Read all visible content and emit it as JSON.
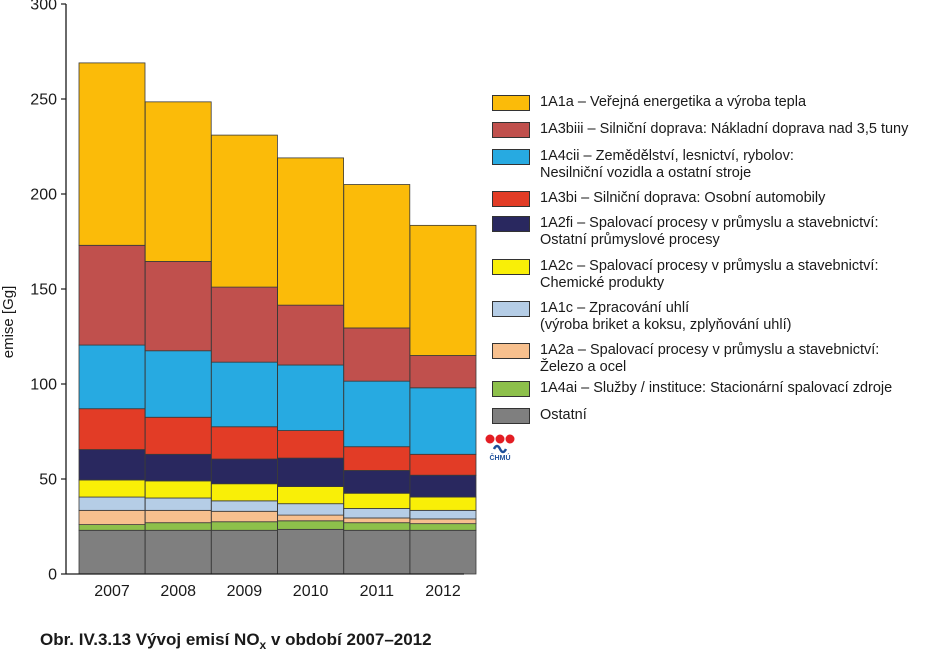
{
  "chart_data": {
    "type": "bar",
    "stacked": true,
    "categories": [
      "2007",
      "2008",
      "2009",
      "2010",
      "2011",
      "2012"
    ],
    "ylabel": "emise [Gg]",
    "xlabel": "",
    "ylim": [
      0,
      300
    ],
    "yticks": [
      "0",
      "50",
      "100",
      "150",
      "200",
      "250",
      "300"
    ],
    "series": [
      {
        "name": "Ostatní",
        "color": "#7f7f7f",
        "values": [
          23,
          23,
          23,
          23.5,
          23,
          23
        ]
      },
      {
        "name": "1A4ai – Služby / instituce: Stacionární spalovací zdroje",
        "color": "#8dc04b",
        "values": [
          3,
          4,
          4.5,
          4.5,
          4,
          3.5
        ]
      },
      {
        "name": "1A2a – Spalovací procesy v průmyslu a stavebnictví:\nŽelezo a ocel",
        "color": "#f7c08e",
        "values": [
          7.5,
          6.5,
          5.5,
          3,
          2.5,
          2.5
        ]
      },
      {
        "name": "1A1c – Zpracování uhlí\n(výroba briket a koksu, zplyňování uhlí)",
        "color": "#b5cde6",
        "values": [
          7,
          6.5,
          5.5,
          6,
          5,
          4.5
        ]
      },
      {
        "name": "1A2c – Spalovací procesy v průmyslu a stavebnictví:\nChemické produkty",
        "color": "#f9ef07",
        "values": [
          9,
          9,
          9,
          9,
          8,
          7
        ]
      },
      {
        "name": "1A2fi – Spalovací procesy v průmyslu a stavebnictví:\nOstatní průmyslové procesy",
        "color": "#29285f",
        "values": [
          16,
          14,
          13,
          15,
          12,
          11.5
        ]
      },
      {
        "name": "1A3bi – Silniční doprava: Osobní automobily",
        "color": "#e23c26",
        "values": [
          21.5,
          19.5,
          17,
          14.5,
          12.5,
          11
        ]
      },
      {
        "name": "1A4cii – Zemědělství, lesnictví, rybolov:\nNesilniční vozidla a ostatní stroje",
        "color": "#27aae1",
        "values": [
          33.5,
          35,
          34,
          34.5,
          34.5,
          35
        ]
      },
      {
        "name": "1A3biii – Silniční doprava: Nákladní doprava nad 3,5 tuny",
        "color": "#c0504d",
        "values": [
          52.5,
          47,
          39.5,
          31.5,
          28,
          17
        ]
      },
      {
        "name": "1A1a – Veřejná energetika a výroba tepla",
        "color": "#fbbb09",
        "values": [
          96,
          84,
          80,
          77.5,
          75.5,
          68.5
        ]
      }
    ]
  },
  "legend_order": [
    9,
    8,
    7,
    6,
    5,
    4,
    3,
    2,
    1,
    0
  ],
  "caption": {
    "prefix": "Obr. IV.3.13  Vývoj emisí NO",
    "sub": "x",
    "suffix": " v období 2007–2012"
  },
  "logo": {
    "text": "ČHMÚ",
    "colors": [
      "#e31e24",
      "#1d4f9a"
    ]
  }
}
